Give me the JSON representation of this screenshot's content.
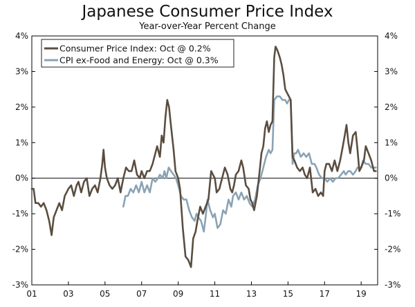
{
  "chart_data": {
    "type": "line",
    "title": "Japanese Consumer Price Index",
    "subtitle": "Year-over-Year Percent Change",
    "xlabel": "",
    "ylabel": "",
    "xlim": [
      2001.0,
      2019.9
    ],
    "ylim": [
      -3,
      4
    ],
    "x_ticks": [
      {
        "value": 2001,
        "label": "01"
      },
      {
        "value": 2003,
        "label": "03"
      },
      {
        "value": 2005,
        "label": "05"
      },
      {
        "value": 2007,
        "label": "07"
      },
      {
        "value": 2009,
        "label": "09"
      },
      {
        "value": 2011,
        "label": "11"
      },
      {
        "value": 2013,
        "label": "13"
      },
      {
        "value": 2015,
        "label": "15"
      },
      {
        "value": 2017,
        "label": "17"
      },
      {
        "value": 2019,
        "label": "19"
      }
    ],
    "y_ticks": [
      {
        "value": 4,
        "label": "4%"
      },
      {
        "value": 3,
        "label": "3%"
      },
      {
        "value": 2,
        "label": "2%"
      },
      {
        "value": 1,
        "label": "1%"
      },
      {
        "value": 0,
        "label": "0%"
      },
      {
        "value": -1,
        "label": "-1%"
      },
      {
        "value": -2,
        "label": "-2%"
      },
      {
        "value": -3,
        "label": "-3%"
      }
    ],
    "legend_position": "top-left",
    "colors": {
      "cpi": "#5a4d40",
      "core": "#8aa3b5",
      "axis": "#000000",
      "zero_line": "#000000"
    },
    "series": [
      {
        "name": "Consumer Price Index: Oct @ 0.2%",
        "color_key": "cpi",
        "points": [
          [
            2001.0,
            -0.3
          ],
          [
            2001.1,
            -0.3
          ],
          [
            2001.2,
            -0.7
          ],
          [
            2001.35,
            -0.7
          ],
          [
            2001.5,
            -0.8
          ],
          [
            2001.65,
            -0.7
          ],
          [
            2001.8,
            -0.9
          ],
          [
            2001.95,
            -1.2
          ],
          [
            2002.08,
            -1.6
          ],
          [
            2002.2,
            -1.1
          ],
          [
            2002.35,
            -0.9
          ],
          [
            2002.5,
            -0.7
          ],
          [
            2002.65,
            -0.9
          ],
          [
            2002.8,
            -0.5
          ],
          [
            2002.9,
            -0.4
          ],
          [
            2003.0,
            -0.3
          ],
          [
            2003.15,
            -0.2
          ],
          [
            2003.3,
            -0.5
          ],
          [
            2003.45,
            -0.2
          ],
          [
            2003.55,
            -0.1
          ],
          [
            2003.7,
            -0.4
          ],
          [
            2003.85,
            -0.1
          ],
          [
            2004.0,
            0.0
          ],
          [
            2004.15,
            -0.5
          ],
          [
            2004.3,
            -0.3
          ],
          [
            2004.45,
            -0.2
          ],
          [
            2004.6,
            -0.4
          ],
          [
            2004.75,
            0.0
          ],
          [
            2004.85,
            0.4
          ],
          [
            2004.92,
            0.8
          ],
          [
            2005.0,
            0.3
          ],
          [
            2005.1,
            0.0
          ],
          [
            2005.25,
            -0.2
          ],
          [
            2005.4,
            -0.3
          ],
          [
            2005.55,
            -0.2
          ],
          [
            2005.7,
            0.0
          ],
          [
            2005.85,
            -0.4
          ],
          [
            2006.0,
            0.0
          ],
          [
            2006.15,
            0.3
          ],
          [
            2006.3,
            0.2
          ],
          [
            2006.45,
            0.2
          ],
          [
            2006.6,
            0.5
          ],
          [
            2006.75,
            0.1
          ],
          [
            2006.9,
            0.0
          ],
          [
            2007.0,
            0.2
          ],
          [
            2007.15,
            0.0
          ],
          [
            2007.3,
            0.2
          ],
          [
            2007.45,
            0.2
          ],
          [
            2007.6,
            0.4
          ],
          [
            2007.75,
            0.7
          ],
          [
            2007.85,
            0.9
          ],
          [
            2008.0,
            0.6
          ],
          [
            2008.1,
            1.2
          ],
          [
            2008.2,
            1.0
          ],
          [
            2008.3,
            1.7
          ],
          [
            2008.4,
            2.2
          ],
          [
            2008.5,
            2.0
          ],
          [
            2008.62,
            1.4
          ],
          [
            2008.75,
            0.8
          ],
          [
            2008.85,
            0.2
          ],
          [
            2009.0,
            0.0
          ],
          [
            2009.1,
            -0.3
          ],
          [
            2009.25,
            -1.4
          ],
          [
            2009.4,
            -2.2
          ],
          [
            2009.55,
            -2.3
          ],
          [
            2009.7,
            -2.5
          ],
          [
            2009.82,
            -1.7
          ],
          [
            2009.95,
            -1.5
          ],
          [
            2010.05,
            -1.2
          ],
          [
            2010.2,
            -0.8
          ],
          [
            2010.35,
            -1.0
          ],
          [
            2010.5,
            -0.8
          ],
          [
            2010.65,
            -0.6
          ],
          [
            2010.8,
            0.2
          ],
          [
            2010.9,
            0.1
          ],
          [
            2011.0,
            0.0
          ],
          [
            2011.1,
            -0.4
          ],
          [
            2011.25,
            -0.3
          ],
          [
            2011.4,
            0.0
          ],
          [
            2011.55,
            0.3
          ],
          [
            2011.7,
            0.1
          ],
          [
            2011.85,
            -0.3
          ],
          [
            2011.95,
            -0.4
          ],
          [
            2012.05,
            -0.2
          ],
          [
            2012.15,
            0.1
          ],
          [
            2012.3,
            0.2
          ],
          [
            2012.45,
            0.5
          ],
          [
            2012.55,
            0.3
          ],
          [
            2012.7,
            -0.2
          ],
          [
            2012.85,
            -0.3
          ],
          [
            2012.95,
            -0.6
          ],
          [
            2013.05,
            -0.7
          ],
          [
            2013.15,
            -0.9
          ],
          [
            2013.3,
            -0.5
          ],
          [
            2013.45,
            0.2
          ],
          [
            2013.55,
            0.7
          ],
          [
            2013.65,
            0.9
          ],
          [
            2013.75,
            1.4
          ],
          [
            2013.85,
            1.6
          ],
          [
            2013.95,
            1.3
          ],
          [
            2014.05,
            1.5
          ],
          [
            2014.15,
            1.6
          ],
          [
            2014.25,
            3.4
          ],
          [
            2014.32,
            3.7
          ],
          [
            2014.42,
            3.6
          ],
          [
            2014.55,
            3.4
          ],
          [
            2014.65,
            3.2
          ],
          [
            2014.75,
            2.9
          ],
          [
            2014.85,
            2.5
          ],
          [
            2014.95,
            2.4
          ],
          [
            2015.05,
            2.3
          ],
          [
            2015.15,
            2.2
          ],
          [
            2015.25,
            0.6
          ],
          [
            2015.35,
            0.5
          ],
          [
            2015.5,
            0.3
          ],
          [
            2015.65,
            0.2
          ],
          [
            2015.8,
            0.3
          ],
          [
            2015.92,
            0.1
          ],
          [
            2016.05,
            0.0
          ],
          [
            2016.2,
            0.3
          ],
          [
            2016.35,
            -0.4
          ],
          [
            2016.5,
            -0.3
          ],
          [
            2016.65,
            -0.5
          ],
          [
            2016.8,
            -0.4
          ],
          [
            2016.92,
            -0.5
          ],
          [
            2017.0,
            0.2
          ],
          [
            2017.1,
            0.4
          ],
          [
            2017.25,
            0.4
          ],
          [
            2017.4,
            0.2
          ],
          [
            2017.55,
            0.5
          ],
          [
            2017.7,
            0.2
          ],
          [
            2017.85,
            0.5
          ],
          [
            2018.0,
            0.9
          ],
          [
            2018.1,
            1.2
          ],
          [
            2018.2,
            1.5
          ],
          [
            2018.3,
            1.0
          ],
          [
            2018.4,
            0.7
          ],
          [
            2018.55,
            1.2
          ],
          [
            2018.7,
            1.3
          ],
          [
            2018.8,
            0.8
          ],
          [
            2018.9,
            0.2
          ],
          [
            2019.0,
            0.3
          ],
          [
            2019.15,
            0.5
          ],
          [
            2019.25,
            0.9
          ],
          [
            2019.4,
            0.7
          ],
          [
            2019.55,
            0.5
          ],
          [
            2019.7,
            0.2
          ],
          [
            2019.8,
            0.2
          ]
        ]
      },
      {
        "name": "CPI ex-Food and Energy: Oct @ 0.3%",
        "color_key": "core",
        "points": [
          [
            2006.0,
            -0.8
          ],
          [
            2006.12,
            -0.5
          ],
          [
            2006.25,
            -0.5
          ],
          [
            2006.4,
            -0.3
          ],
          [
            2006.55,
            -0.4
          ],
          [
            2006.7,
            -0.2
          ],
          [
            2006.85,
            -0.4
          ],
          [
            2007.0,
            -0.1
          ],
          [
            2007.15,
            -0.4
          ],
          [
            2007.3,
            -0.2
          ],
          [
            2007.45,
            -0.4
          ],
          [
            2007.6,
            0.0
          ],
          [
            2007.75,
            -0.1
          ],
          [
            2007.9,
            0.0
          ],
          [
            2008.0,
            0.1
          ],
          [
            2008.15,
            0.0
          ],
          [
            2008.25,
            0.2
          ],
          [
            2008.35,
            0.0
          ],
          [
            2008.48,
            0.3
          ],
          [
            2008.6,
            0.2
          ],
          [
            2008.75,
            0.1
          ],
          [
            2008.88,
            0.0
          ],
          [
            2009.0,
            -0.2
          ],
          [
            2009.15,
            -0.5
          ],
          [
            2009.3,
            -0.6
          ],
          [
            2009.45,
            -0.6
          ],
          [
            2009.6,
            -0.9
          ],
          [
            2009.75,
            -1.1
          ],
          [
            2009.9,
            -1.2
          ],
          [
            2010.0,
            -1.0
          ],
          [
            2010.1,
            -1.1
          ],
          [
            2010.25,
            -1.2
          ],
          [
            2010.4,
            -1.5
          ],
          [
            2010.5,
            -1.1
          ],
          [
            2010.6,
            -0.6
          ],
          [
            2010.75,
            -0.9
          ],
          [
            2010.9,
            -1.1
          ],
          [
            2011.0,
            -1.0
          ],
          [
            2011.15,
            -1.4
          ],
          [
            2011.3,
            -1.3
          ],
          [
            2011.45,
            -0.9
          ],
          [
            2011.6,
            -1.0
          ],
          [
            2011.75,
            -0.6
          ],
          [
            2011.9,
            -0.8
          ],
          [
            2012.0,
            -0.5
          ],
          [
            2012.15,
            -0.4
          ],
          [
            2012.3,
            -0.6
          ],
          [
            2012.45,
            -0.4
          ],
          [
            2012.6,
            -0.6
          ],
          [
            2012.75,
            -0.5
          ],
          [
            2012.9,
            -0.7
          ],
          [
            2013.05,
            -0.8
          ],
          [
            2013.2,
            -0.6
          ],
          [
            2013.35,
            -0.2
          ],
          [
            2013.5,
            0.0
          ],
          [
            2013.65,
            0.3
          ],
          [
            2013.8,
            0.6
          ],
          [
            2013.95,
            0.8
          ],
          [
            2014.05,
            0.7
          ],
          [
            2014.15,
            0.8
          ],
          [
            2014.25,
            2.2
          ],
          [
            2014.4,
            2.3
          ],
          [
            2014.55,
            2.3
          ],
          [
            2014.7,
            2.2
          ],
          [
            2014.85,
            2.2
          ],
          [
            2014.95,
            2.1
          ],
          [
            2015.05,
            2.2
          ],
          [
            2015.15,
            2.2
          ],
          [
            2015.25,
            0.4
          ],
          [
            2015.35,
            0.7
          ],
          [
            2015.45,
            0.7
          ],
          [
            2015.55,
            0.8
          ],
          [
            2015.7,
            0.6
          ],
          [
            2015.85,
            0.7
          ],
          [
            2016.0,
            0.6
          ],
          [
            2016.15,
            0.7
          ],
          [
            2016.3,
            0.4
          ],
          [
            2016.45,
            0.4
          ],
          [
            2016.55,
            0.3
          ],
          [
            2016.7,
            0.1
          ],
          [
            2016.85,
            0.0
          ],
          [
            2017.0,
            0.0
          ],
          [
            2017.15,
            -0.1
          ],
          [
            2017.3,
            0.0
          ],
          [
            2017.45,
            -0.1
          ],
          [
            2017.6,
            0.0
          ],
          [
            2017.75,
            0.0
          ],
          [
            2017.9,
            0.1
          ],
          [
            2018.05,
            0.2
          ],
          [
            2018.15,
            0.1
          ],
          [
            2018.3,
            0.2
          ],
          [
            2018.4,
            0.2
          ],
          [
            2018.55,
            0.1
          ],
          [
            2018.7,
            0.2
          ],
          [
            2018.8,
            0.3
          ],
          [
            2018.9,
            0.3
          ],
          [
            2019.0,
            0.3
          ],
          [
            2019.1,
            0.5
          ],
          [
            2019.25,
            0.4
          ],
          [
            2019.4,
            0.4
          ],
          [
            2019.55,
            0.3
          ],
          [
            2019.7,
            0.3
          ],
          [
            2019.8,
            0.3
          ]
        ]
      }
    ]
  }
}
